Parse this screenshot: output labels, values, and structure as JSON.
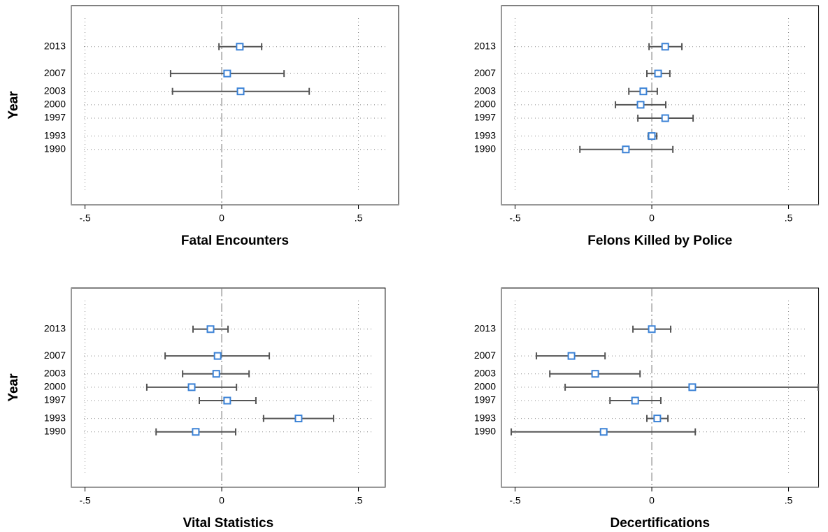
{
  "chart_data": [
    {
      "type": "errorbar",
      "xlabel": "Fatal Encounters",
      "ylabel": "Year",
      "y": [
        2013,
        2007,
        2003
      ],
      "values": [
        0.066,
        0.02,
        0.069
      ],
      "lower": [
        -0.01,
        -0.187,
        -0.18
      ],
      "upper": [
        0.146,
        0.228,
        0.32
      ],
      "color": "#3b82d6",
      "xlim": [
        -0.55,
        0.647
      ],
      "xticks": [
        {
          "value": -0.5,
          "label": "-.5"
        },
        0,
        {
          "value": 0.5,
          "label": ".5"
        }
      ],
      "ylim": [
        1977.6,
        2022.2
      ],
      "yticks": [
        2013,
        2007,
        2003,
        2000,
        1997,
        1993,
        1990
      ],
      "grid": true
    },
    {
      "type": "errorbar",
      "xlabel": "Felons Killed by Police",
      "ylabel": "Year",
      "y": [
        2013,
        2007,
        2003,
        2000,
        1997,
        1993,
        1990
      ],
      "values": [
        0.049,
        0.023,
        -0.031,
        -0.041,
        0.049,
        0.0,
        -0.095
      ],
      "lower": [
        -0.01,
        -0.018,
        -0.084,
        -0.133,
        -0.051,
        -0.013,
        -0.263
      ],
      "upper": [
        0.11,
        0.066,
        0.02,
        0.051,
        0.151,
        0.018,
        0.077
      ],
      "color": "#3b82d6",
      "xlim": [
        -0.55,
        0.61
      ],
      "xticks": [
        {
          "value": -0.5,
          "label": "-.5"
        },
        0,
        {
          "value": 0.5,
          "label": ".5"
        }
      ],
      "ylim": [
        1977.6,
        2022.2
      ],
      "yticks": [
        2013,
        2007,
        2003,
        2000,
        1997,
        1993,
        1990
      ],
      "grid": true
    },
    {
      "type": "errorbar",
      "xlabel": "Vital Statistics",
      "ylabel": "Year",
      "y": [
        2013,
        2007,
        2003,
        2000,
        1997,
        1993,
        1990
      ],
      "values": [
        -0.041,
        -0.015,
        -0.02,
        -0.11,
        0.02,
        0.281,
        -0.095
      ],
      "lower": [
        -0.105,
        -0.207,
        -0.143,
        -0.274,
        -0.082,
        0.153,
        -0.24
      ],
      "upper": [
        0.023,
        0.174,
        0.1,
        0.054,
        0.125,
        0.409,
        0.051
      ],
      "color": "#3b82d6",
      "xlim": [
        -0.55,
        0.598
      ],
      "xticks": [
        {
          "value": -0.5,
          "label": "-.5"
        },
        0,
        {
          "value": 0.5,
          "label": ".5"
        }
      ],
      "ylim": [
        1977.6,
        2022.2
      ],
      "yticks": [
        2013,
        2007,
        2003,
        2000,
        1997,
        1993,
        1990
      ],
      "grid": true
    },
    {
      "type": "errorbar",
      "xlabel": "Decertifications",
      "ylabel": "Year",
      "y": [
        2013,
        2007,
        2003,
        2000,
        1997,
        1993,
        1990
      ],
      "values": [
        0.0,
        -0.294,
        -0.207,
        0.148,
        -0.061,
        0.02,
        -0.176
      ],
      "lower": [
        -0.069,
        -0.422,
        -0.373,
        -0.317,
        -0.153,
        -0.018,
        -0.514
      ],
      "upper": [
        0.069,
        -0.171,
        -0.043,
        0.609,
        0.033,
        0.059,
        0.159
      ],
      "color": "#3b82d6",
      "xlim": [
        -0.55,
        0.61
      ],
      "xticks": [
        {
          "value": -0.5,
          "label": "-.5"
        },
        0,
        {
          "value": 0.5,
          "label": ".5"
        }
      ],
      "ylim": [
        1977.6,
        2022.2
      ],
      "yticks": [
        2013,
        2007,
        2003,
        2000,
        1997,
        1993,
        1990
      ],
      "grid": true
    }
  ]
}
